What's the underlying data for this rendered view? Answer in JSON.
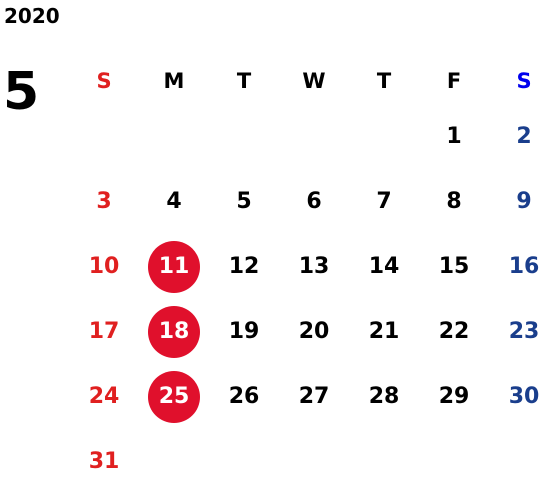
{
  "year": "2020",
  "month": "5",
  "colors": {
    "sunday": "#e02020",
    "saturday": "#1a3e8c",
    "saturday_header": "#0000ee",
    "weekday": "#000000",
    "highlight_bg": "#e0102c",
    "highlight_text": "#ffffff"
  },
  "weekdays": [
    "S",
    "M",
    "T",
    "W",
    "T",
    "F",
    "S"
  ],
  "weeks": [
    [
      "",
      "",
      "",
      "",
      "",
      "1",
      "2"
    ],
    [
      "3",
      "4",
      "5",
      "6",
      "7",
      "8",
      "9"
    ],
    [
      "10",
      "11",
      "12",
      "13",
      "14",
      "15",
      "16"
    ],
    [
      "17",
      "18",
      "19",
      "20",
      "21",
      "22",
      "23"
    ],
    [
      "24",
      "25",
      "26",
      "27",
      "28",
      "29",
      "30"
    ],
    [
      "31",
      "",
      "",
      "",
      "",
      "",
      ""
    ]
  ],
  "highlighted_days": [
    "11",
    "18",
    "25"
  ]
}
